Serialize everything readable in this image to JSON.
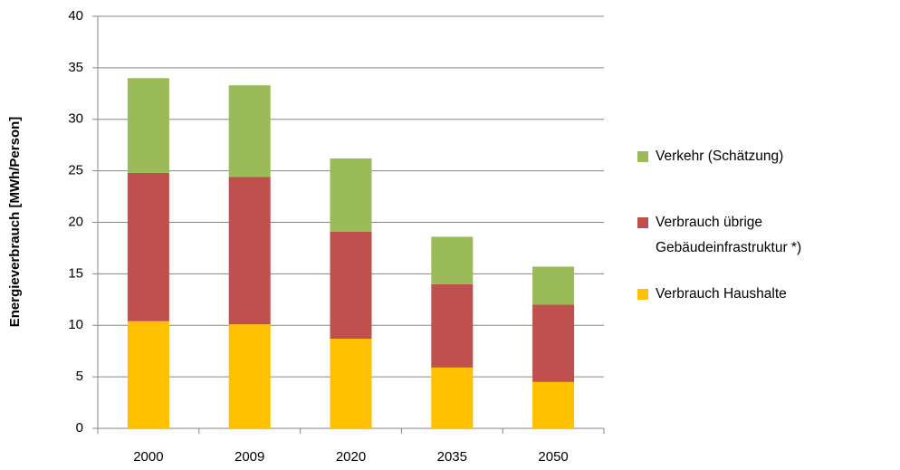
{
  "chart_data": {
    "type": "bar",
    "stacked": true,
    "y_label": "Energieverbrauch [MWh/Person]",
    "categories": [
      "2000",
      "2009",
      "2020",
      "2035",
      "2050"
    ],
    "series": [
      {
        "name": "Verbrauch Haushalte",
        "color": "#ffc000",
        "values": [
          10.4,
          10.1,
          8.7,
          5.9,
          4.5
        ]
      },
      {
        "name": "Verbrauch übrige Gebäudeinfrastruktur *)",
        "color": "#c0504d",
        "values": [
          14.4,
          14.3,
          10.4,
          8.1,
          7.5
        ]
      },
      {
        "name": "Verkehr (Schätzung)",
        "color": "#9bbb59",
        "values": [
          9.2,
          8.9,
          7.1,
          4.6,
          3.7
        ]
      }
    ],
    "ylim": [
      0,
      40
    ],
    "yticks": [
      0,
      5,
      10,
      15,
      20,
      25,
      30,
      35,
      40
    ],
    "grid": true
  }
}
